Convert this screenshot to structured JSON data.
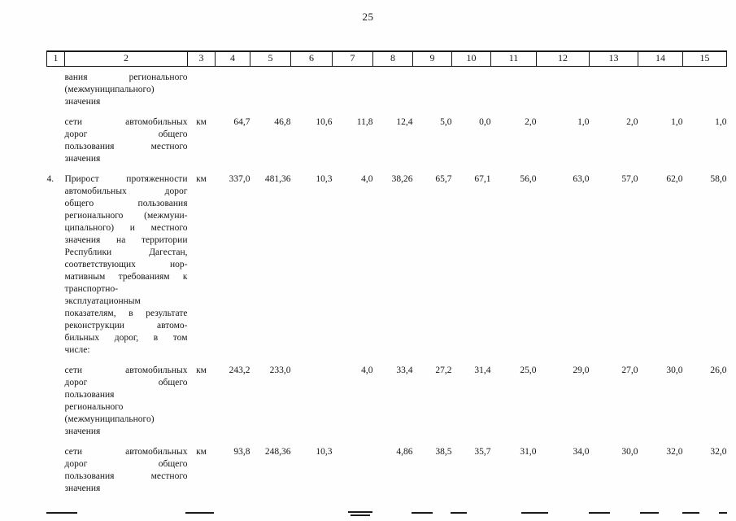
{
  "page": {
    "number": "25"
  },
  "table": {
    "header": [
      "1",
      "2",
      "3",
      "4",
      "5",
      "6",
      "7",
      "8",
      "9",
      "10",
      "11",
      "12",
      "13",
      "14",
      "15"
    ],
    "rows": [
      {
        "num": "",
        "desc_lines": [
          "вания регионального",
          "(межмуниципального)",
          "значения"
        ],
        "cells": [
          "",
          "",
          "",
          "",
          "",
          "",
          "",
          "",
          "",
          "",
          "",
          "",
          ""
        ]
      },
      {
        "num": "",
        "desc_lines": [
          "сети автомобильных",
          "дорог общего",
          "пользования местного",
          "значения"
        ],
        "cells": [
          "км",
          "64,7",
          "46,8",
          "10,6",
          "11,8",
          "12,4",
          "5,0",
          "0,0",
          "2,0",
          "1,0",
          "2,0",
          "1,0",
          "1,0"
        ]
      },
      {
        "num": "4.",
        "desc_lines": [
          "Прирост протяженности",
          "автомобильных дорог",
          "общего пользования",
          "регионального (межмуни-",
          "ципального) и местного",
          "значения на территории",
          "Республики Дагестан,",
          "соответствующих нор-",
          "мативным требованиям к",
          "транспортно-",
          "эксплуатационным",
          "показателям, в результате",
          "реконструкции автомо-",
          "бильных дорог, в том",
          "числе:"
        ],
        "cells": [
          "км",
          "337,0",
          "481,36",
          "10,3",
          "4,0",
          "38,26",
          "65,7",
          "67,1",
          "56,0",
          "63,0",
          "57,0",
          "62,0",
          "58,0"
        ]
      },
      {
        "num": "",
        "desc_lines": [
          "сети автомобильных",
          "дорог общего",
          "пользования",
          "регионального",
          "(межмуниципального)",
          "значения"
        ],
        "cells": [
          "км",
          "243,2",
          "233,0",
          "",
          "4,0",
          "33,4",
          "27,2",
          "31,4",
          "25,0",
          "29,0",
          "27,0",
          "30,0",
          "26,0"
        ]
      },
      {
        "num": "",
        "desc_lines": [
          "сети автомобильных",
          "дорог общего",
          "пользования местного",
          "значения"
        ],
        "cells": [
          "км",
          "93,8",
          "248,36",
          "10,3",
          "",
          "4,86",
          "38,5",
          "35,7",
          "31,0",
          "34,0",
          "30,0",
          "32,0",
          "32,0"
        ]
      }
    ]
  }
}
